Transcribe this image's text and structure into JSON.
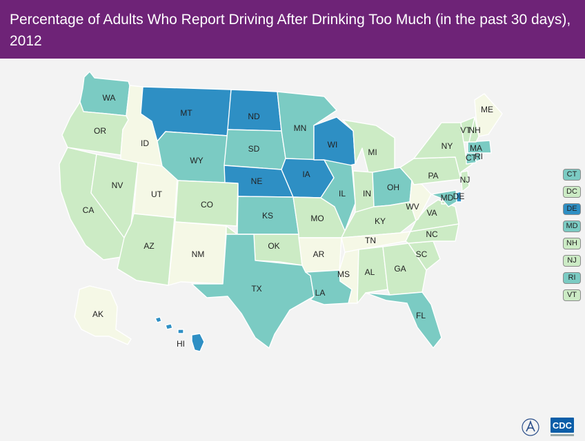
{
  "title": "Percentage of Adults Who Report Driving After Drinking Too Much (in the past 30 days), 2012",
  "colors": {
    "white": "#f5f8e6",
    "light": "#ccebc5",
    "mid": "#7bcbc3",
    "dark": "#2e8fc4"
  },
  "chart_data": {
    "type": "choropleth",
    "title": "Percentage of Adults Who Report Driving After Drinking Too Much (in the past 30 days), 2012",
    "levels": [
      "white",
      "light",
      "mid",
      "dark"
    ],
    "states": [
      {
        "abbr": "WA",
        "level": "mid"
      },
      {
        "abbr": "OR",
        "level": "light"
      },
      {
        "abbr": "CA",
        "level": "light"
      },
      {
        "abbr": "ID",
        "level": "white"
      },
      {
        "abbr": "NV",
        "level": "light"
      },
      {
        "abbr": "UT",
        "level": "white"
      },
      {
        "abbr": "AZ",
        "level": "light"
      },
      {
        "abbr": "MT",
        "level": "dark"
      },
      {
        "abbr": "WY",
        "level": "mid"
      },
      {
        "abbr": "CO",
        "level": "light"
      },
      {
        "abbr": "NM",
        "level": "white"
      },
      {
        "abbr": "ND",
        "level": "dark"
      },
      {
        "abbr": "SD",
        "level": "mid"
      },
      {
        "abbr": "NE",
        "level": "dark"
      },
      {
        "abbr": "KS",
        "level": "mid"
      },
      {
        "abbr": "OK",
        "level": "light"
      },
      {
        "abbr": "TX",
        "level": "mid"
      },
      {
        "abbr": "MN",
        "level": "mid"
      },
      {
        "abbr": "IA",
        "level": "dark"
      },
      {
        "abbr": "MO",
        "level": "light"
      },
      {
        "abbr": "AR",
        "level": "white"
      },
      {
        "abbr": "LA",
        "level": "mid"
      },
      {
        "abbr": "WI",
        "level": "dark"
      },
      {
        "abbr": "IL",
        "level": "mid"
      },
      {
        "abbr": "MI",
        "level": "light"
      },
      {
        "abbr": "IN",
        "level": "light"
      },
      {
        "abbr": "OH",
        "level": "mid"
      },
      {
        "abbr": "KY",
        "level": "light"
      },
      {
        "abbr": "TN",
        "level": "white"
      },
      {
        "abbr": "MS",
        "level": "white"
      },
      {
        "abbr": "AL",
        "level": "light"
      },
      {
        "abbr": "GA",
        "level": "light"
      },
      {
        "abbr": "FL",
        "level": "mid"
      },
      {
        "abbr": "SC",
        "level": "light"
      },
      {
        "abbr": "NC",
        "level": "light"
      },
      {
        "abbr": "VA",
        "level": "light"
      },
      {
        "abbr": "WV",
        "level": "white"
      },
      {
        "abbr": "PA",
        "level": "light"
      },
      {
        "abbr": "NY",
        "level": "light"
      },
      {
        "abbr": "ME",
        "level": "white"
      },
      {
        "abbr": "MA",
        "level": "mid"
      },
      {
        "abbr": "AK",
        "level": "white"
      },
      {
        "abbr": "HI",
        "level": "dark"
      },
      {
        "abbr": "CT",
        "level": "mid"
      },
      {
        "abbr": "DC",
        "level": "light"
      },
      {
        "abbr": "DE",
        "level": "dark"
      },
      {
        "abbr": "MD",
        "level": "mid"
      },
      {
        "abbr": "NH",
        "level": "light"
      },
      {
        "abbr": "NJ",
        "level": "light"
      },
      {
        "abbr": "RI",
        "level": "mid"
      },
      {
        "abbr": "VT",
        "level": "light"
      }
    ],
    "legend_small_states": [
      "CT",
      "DC",
      "DE",
      "MD",
      "NH",
      "NJ",
      "RI",
      "VT"
    ]
  },
  "logos": {
    "cdc": "CDC",
    "hhs": "hhs-seal-icon"
  }
}
